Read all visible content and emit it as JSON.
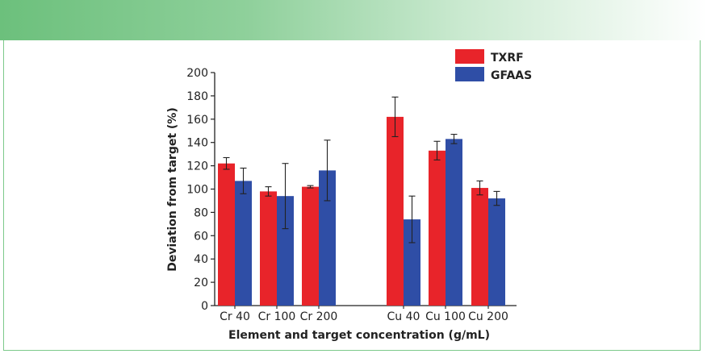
{
  "colors": {
    "txrf": "#e8242a",
    "gfaas": "#2f4ea6"
  },
  "chart_data": {
    "type": "bar",
    "title": "",
    "xlabel": "Element and target concentration (g/mL)",
    "ylabel": "Deviation from target (%)",
    "ylim": [
      0,
      200
    ],
    "yticks": [
      0,
      20,
      40,
      60,
      80,
      100,
      120,
      140,
      160,
      180,
      200
    ],
    "categories": [
      "Cr 40",
      "Cr 100",
      "Cr 200",
      "Cu 40",
      "Cu 100",
      "Cu 200"
    ],
    "legend_position": "top-right",
    "series": [
      {
        "name": "TXRF",
        "values": [
          122,
          98,
          102,
          162,
          133,
          101
        ],
        "errors": [
          5,
          4,
          1,
          17,
          8,
          6
        ]
      },
      {
        "name": "GFAAS",
        "values": [
          107,
          94,
          116,
          74,
          143,
          92
        ],
        "errors": [
          11,
          28,
          26,
          20,
          4,
          6
        ]
      }
    ]
  }
}
